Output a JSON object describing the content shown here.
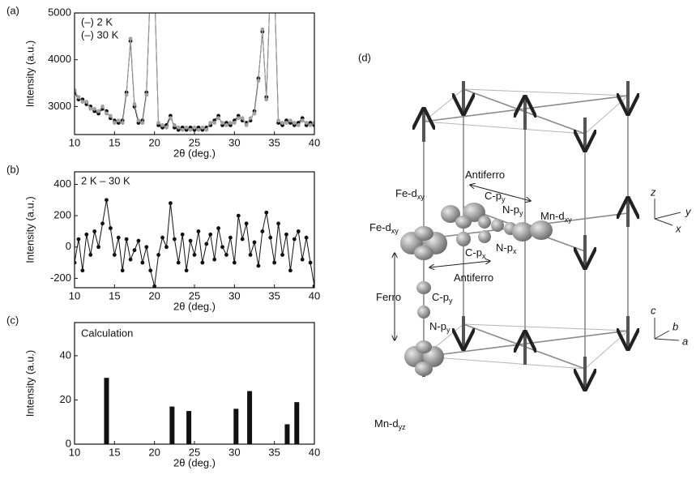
{
  "chart_data": [
    {
      "type": "line",
      "panel_label": "(a)",
      "xlabel": "2θ (deg.)",
      "ylabel": "Intensity (a.u.)",
      "legend": "upper left",
      "x": [
        10,
        10.5,
        11,
        11.5,
        12,
        12.5,
        13,
        13.5,
        14,
        14.5,
        15,
        15.5,
        16,
        16.5,
        17,
        17.5,
        18,
        18.5,
        19,
        19.5,
        20,
        20.5,
        21,
        21.5,
        22,
        22.5,
        23,
        23.5,
        24,
        24.5,
        25,
        25.5,
        26,
        26.5,
        27,
        27.5,
        28,
        28.5,
        29,
        29.5,
        30,
        30.5,
        31,
        31.5,
        32,
        32.5,
        33,
        33.5,
        34,
        34.5,
        35,
        35.5,
        36,
        36.5,
        37,
        37.5,
        38,
        38.5,
        39,
        39.5,
        40
      ],
      "series": [
        {
          "name": "(–) 2 K",
          "color": "#111111",
          "values": [
            3300,
            3150,
            3150,
            3050,
            3000,
            2900,
            2850,
            2950,
            2900,
            2750,
            2700,
            2650,
            2700,
            3300,
            4400,
            3000,
            2650,
            2700,
            3300,
            5600,
            5600,
            2600,
            2550,
            2600,
            2800,
            2550,
            2500,
            2550,
            2500,
            2550,
            2500,
            2550,
            2500,
            2550,
            2600,
            2700,
            2800,
            2600,
            2650,
            2600,
            2700,
            2800,
            2700,
            2650,
            2700,
            2900,
            3600,
            4600,
            3200,
            5600,
            5600,
            2650,
            2600,
            2700,
            2650,
            2600,
            2650,
            2750,
            2600,
            2650,
            2600
          ]
        },
        {
          "name": "(–) 30 K",
          "color": "#a0a0a0",
          "values": [
            3350,
            3200,
            3100,
            3100,
            2950,
            2950,
            2900,
            3000,
            2850,
            2800,
            2650,
            2700,
            2650,
            3250,
            4450,
            3050,
            2700,
            2650,
            3250,
            5600,
            5600,
            2650,
            2600,
            2550,
            2750,
            2600,
            2550,
            2500,
            2550,
            2500,
            2550,
            2500,
            2550,
            2500,
            2650,
            2650,
            2750,
            2650,
            2600,
            2650,
            2650,
            2750,
            2750,
            2600,
            2750,
            2850,
            3550,
            4650,
            3150,
            5600,
            5600,
            2700,
            2650,
            2650,
            2700,
            2650,
            2600,
            2700,
            2650,
            2600,
            2650
          ]
        }
      ],
      "xlim": [
        10,
        40
      ],
      "xticks": [
        10,
        15,
        20,
        25,
        30,
        35,
        40
      ],
      "ylim": [
        2400,
        5000
      ],
      "yticks": [
        3000,
        4000,
        5000
      ]
    },
    {
      "type": "line",
      "panel_label": "(b)",
      "xlabel": "2θ (deg.)",
      "ylabel": "Intensity (a.u.)",
      "legend": "upper left",
      "x": [
        10,
        10.5,
        11,
        11.5,
        12,
        12.5,
        13,
        13.5,
        14,
        14.5,
        15,
        15.5,
        16,
        16.5,
        17,
        17.5,
        18,
        18.5,
        19,
        19.5,
        20,
        20.5,
        21,
        21.5,
        22,
        22.5,
        23,
        23.5,
        24,
        24.5,
        25,
        25.5,
        26,
        26.5,
        27,
        27.5,
        28,
        28.5,
        29,
        29.5,
        30,
        30.5,
        31,
        31.5,
        32,
        32.5,
        33,
        33.5,
        34,
        34.5,
        35,
        35.5,
        36,
        36.5,
        37,
        37.5,
        38,
        38.5,
        39,
        39.5,
        40
      ],
      "series": [
        {
          "name": "2 K – 30 K",
          "color": "#111111",
          "values": [
            -100,
            50,
            -150,
            80,
            -50,
            100,
            0,
            150,
            300,
            120,
            -50,
            60,
            -150,
            50,
            -80,
            -20,
            40,
            -100,
            0,
            -150,
            -250,
            -50,
            60,
            0,
            280,
            50,
            -100,
            80,
            -150,
            40,
            -50,
            100,
            -100,
            20,
            80,
            -80,
            120,
            0,
            -50,
            60,
            -100,
            200,
            50,
            150,
            -50,
            30,
            -120,
            100,
            220,
            60,
            -100,
            150,
            -50,
            80,
            -150,
            50,
            100,
            -80,
            60,
            -100,
            -250
          ]
        }
      ],
      "xlim": [
        10,
        40
      ],
      "xticks": [
        10,
        15,
        20,
        25,
        30,
        35,
        40
      ],
      "ylim": [
        -260,
        480
      ],
      "yticks": [
        -200,
        0,
        200,
        400
      ]
    },
    {
      "type": "bar",
      "panel_label": "(c)",
      "xlabel": "2θ (deg.)",
      "ylabel": "Intensity (a.u.)",
      "annotation": "Calculation",
      "color": "#111111",
      "x": [
        14,
        22.2,
        24.3,
        30.2,
        31.9,
        36.6,
        37.8
      ],
      "values": [
        30,
        17,
        15,
        16,
        24,
        9,
        19
      ],
      "xlim": [
        10,
        40
      ],
      "xticks": [
        10,
        15,
        20,
        25,
        30,
        35,
        40
      ],
      "ylim": [
        0,
        55
      ],
      "yticks": [
        0,
        20,
        40
      ]
    }
  ],
  "diagram": {
    "panel_label": "(d)",
    "labels": [
      {
        "text": "Antiferro"
      },
      {
        "text": "Fe-d",
        "sub": "xy"
      },
      {
        "text": "C-p",
        "sub": "y"
      },
      {
        "text": "N-p",
        "sub": "y"
      },
      {
        "text": "Mn-d",
        "sub": "xy"
      },
      {
        "text": "Fe-d",
        "sub": "xy"
      },
      {
        "text": "N-p",
        "sub": "x"
      },
      {
        "text": "C-p",
        "sub": "x"
      },
      {
        "text": "Antiferro"
      },
      {
        "text": "Ferro"
      },
      {
        "text": "C-p",
        "sub": "y"
      },
      {
        "text": "N-p",
        "sub": "y"
      },
      {
        "text": "Mn-d",
        "sub": "yz"
      }
    ],
    "axes_top": [
      "z",
      "y",
      "x"
    ],
    "axes_bottom": [
      "c",
      "b",
      "a"
    ]
  }
}
